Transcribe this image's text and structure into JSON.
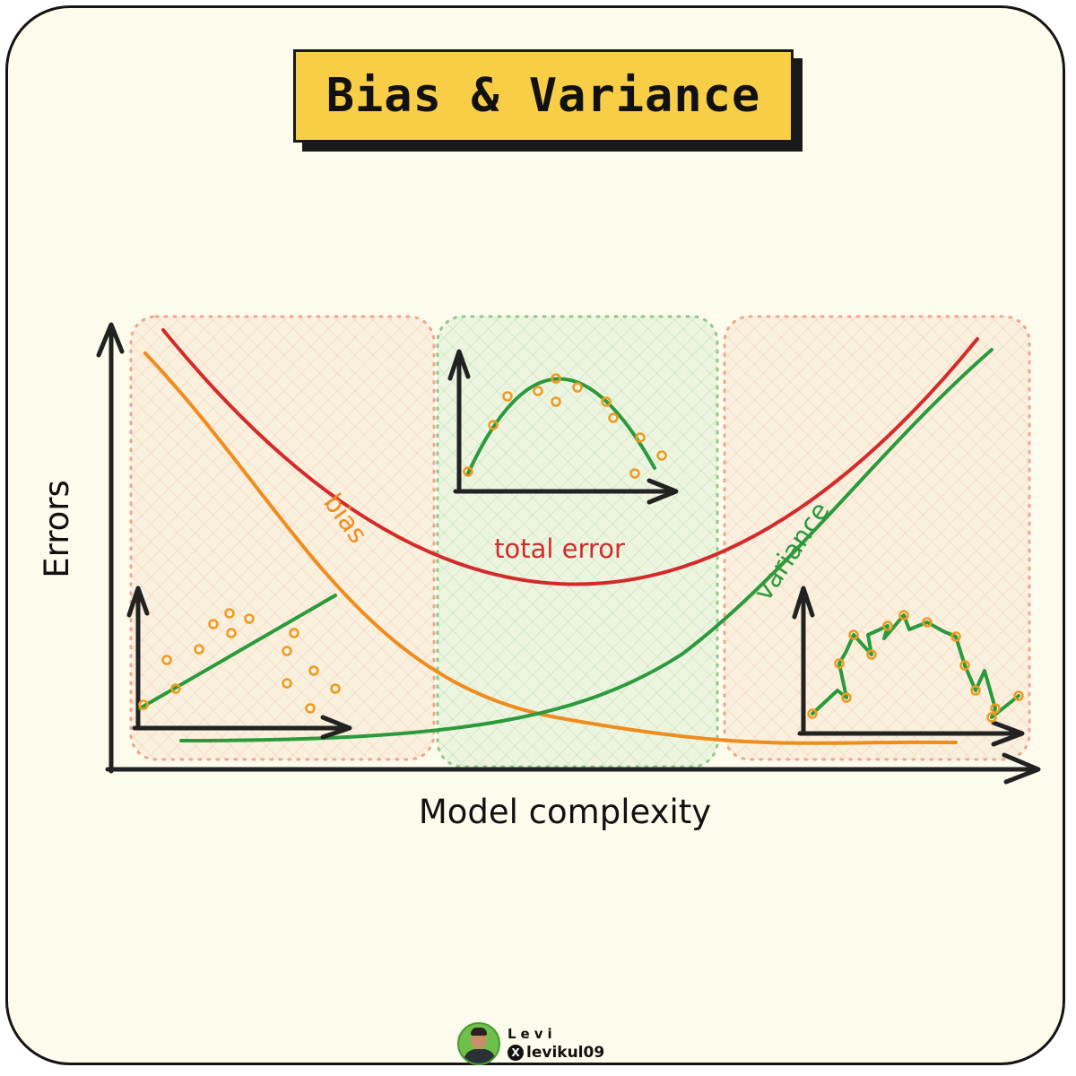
{
  "title": "Bias & Variance",
  "axes": {
    "x_label": "Model complexity",
    "y_label": "Errors"
  },
  "curves": {
    "total_error": {
      "label": "total error",
      "color": "#d42a2a"
    },
    "bias": {
      "label": "bias",
      "color": "#ef8c1e"
    },
    "variance": {
      "label": "variance",
      "color": "#2a9a3c"
    }
  },
  "regions": {
    "underfit_color": "#f0a58e",
    "good_fit_color": "#8ec98a",
    "overfit_color": "#f0a58e"
  },
  "point_color": "#ef9a1e",
  "credit": {
    "name": "Levi",
    "handle": "levikul09",
    "icon": "x-logo-icon"
  }
}
